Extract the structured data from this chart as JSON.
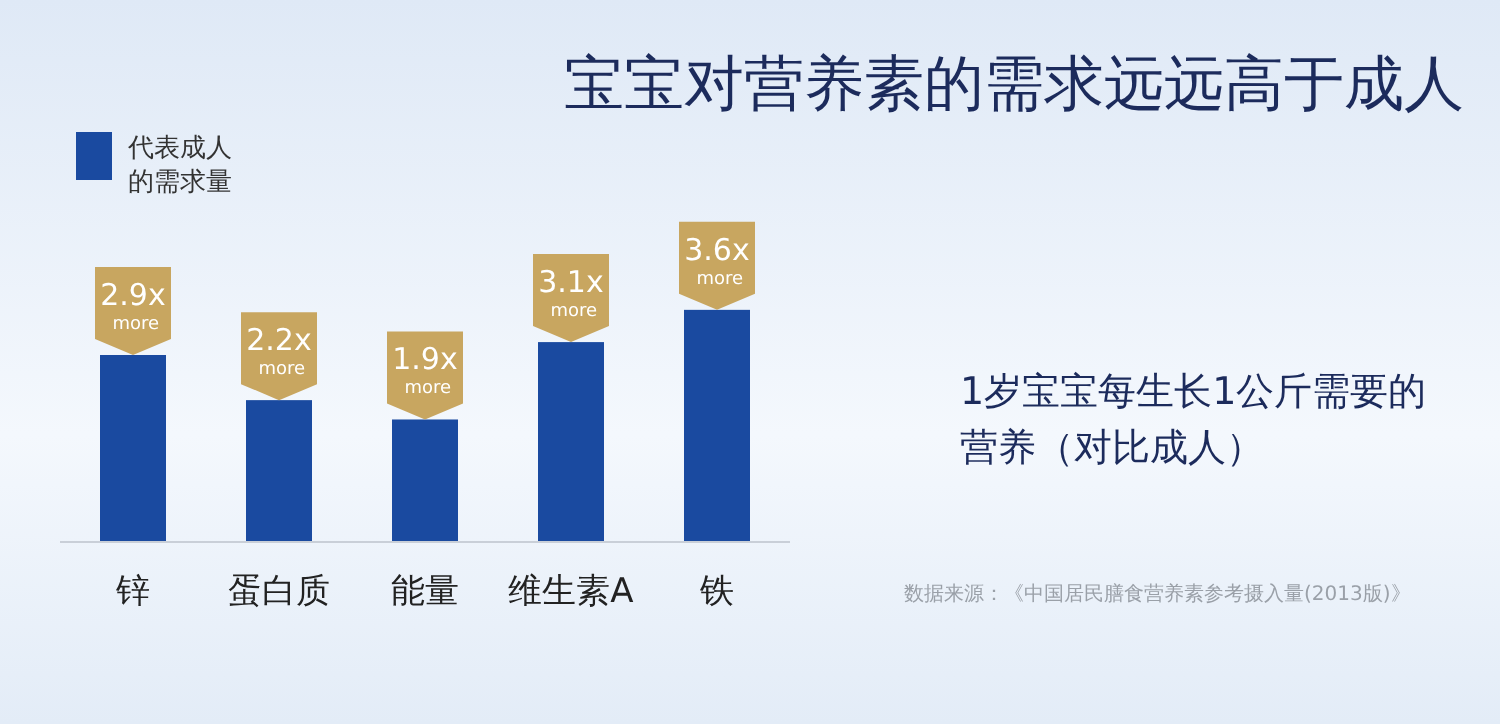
{
  "chart_data": {
    "type": "bar",
    "title": "宝宝对营养素的需求远远高于成人",
    "categories": [
      "锌",
      "蛋白质",
      "能量",
      "维生素A",
      "铁"
    ],
    "series": [
      {
        "name": "代表成人的需求量",
        "color": "#1a4aa0",
        "values": [
          2.9,
          2.2,
          1.9,
          3.1,
          3.6
        ],
        "value_labels": [
          "2.9x\nmore",
          "2.2x\nmore",
          "1.9x\nmore",
          "3.1x\nmore",
          "3.6x\nmore"
        ]
      }
    ],
    "legend": "top left",
    "annotations": [
      "1岁宝宝每生长1公斤需要的营养（对比成人）",
      "数据来源：《中国居民膳食营养素参考摄入量(2013版)》"
    ]
  }
}
